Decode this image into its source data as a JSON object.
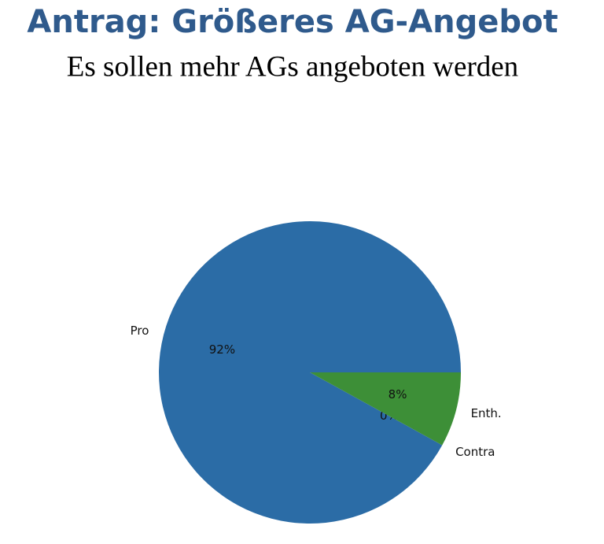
{
  "chart_data": {
    "type": "pie",
    "title": "Antrag: Größeres AG-Angebot",
    "subtitle": "Es sollen mehr AGs angeboten werden",
    "categories": [
      "Pro",
      "Contra",
      "Enth."
    ],
    "values": [
      92,
      0,
      8
    ],
    "value_labels": [
      "92%",
      "0%",
      "8%"
    ],
    "colors": [
      "#2b6ca6",
      "#f08a2a",
      "#3d8f37"
    ],
    "start_angle": 0,
    "counterclock": true
  }
}
